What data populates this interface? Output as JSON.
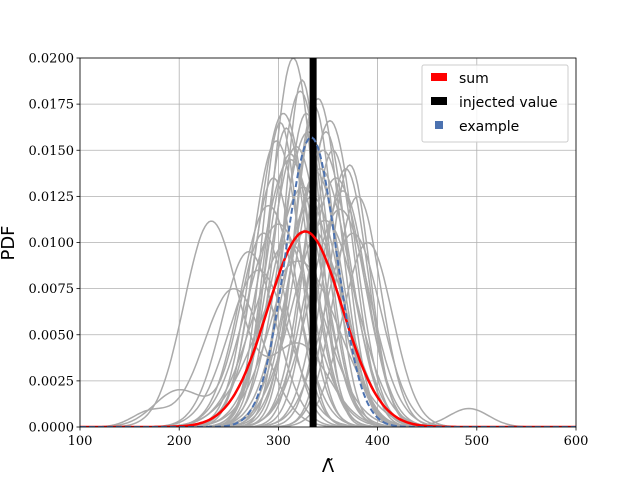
{
  "chart_data": {
    "type": "line",
    "xlabel": "Λ̃",
    "ylabel": "PDF",
    "xlim": [
      100,
      600
    ],
    "ylim": [
      0,
      0.02
    ],
    "grid": true,
    "x_ticks": [
      100,
      200,
      300,
      400,
      500,
      600
    ],
    "y_ticks": [
      0.0,
      0.0025,
      0.005,
      0.0075,
      0.01,
      0.0125,
      0.015,
      0.0175,
      0.02
    ],
    "x_tick_labels": [
      "100",
      "200",
      "300",
      "400",
      "500",
      "600"
    ],
    "y_tick_labels": [
      "0.0000",
      "0.0025",
      "0.0050",
      "0.0075",
      "0.0100",
      "0.0125",
      "0.0150",
      "0.0175",
      "0.0200"
    ],
    "legend_position": "top-right",
    "legend": [
      {
        "label": "sum",
        "color": "#ff0000",
        "style": "patch"
      },
      {
        "label": "injected value",
        "color": "#000000",
        "style": "patch"
      },
      {
        "label": "example",
        "color": "#4c72b0",
        "style": "patch"
      }
    ],
    "injected_value": 335,
    "series": [
      {
        "name": "sum",
        "color": "#ff0000",
        "dash": "solid",
        "components": [
          {
            "mu": 327,
            "sigma": 37.6,
            "peak": 0.0106
          }
        ]
      },
      {
        "name": "example",
        "color": "#4c72b0",
        "dash": "dashed",
        "components": [
          {
            "mu": 333,
            "sigma": 25.5,
            "peak": 0.0157
          }
        ]
      }
    ],
    "background_curves_color": "#aaaaaa",
    "background_curves": [
      [
        {
          "mu": 232,
          "sigma": 27,
          "peak": 0.0111
        },
        {
          "mu": 320,
          "sigma": 30,
          "peak": 0.0045
        }
      ],
      [
        {
          "mu": 315,
          "sigma": 22,
          "peak": 0.02
        }
      ],
      [
        {
          "mu": 322,
          "sigma": 24,
          "peak": 0.0182
        }
      ],
      [
        {
          "mu": 305,
          "sigma": 26,
          "peak": 0.017
        }
      ],
      [
        {
          "mu": 340,
          "sigma": 23,
          "peak": 0.0178
        }
      ],
      [
        {
          "mu": 352,
          "sigma": 25,
          "peak": 0.0166
        }
      ],
      [
        {
          "mu": 368,
          "sigma": 22,
          "peak": 0.014
        }
      ],
      [
        {
          "mu": 380,
          "sigma": 23,
          "peak": 0.0125
        }
      ],
      [
        {
          "mu": 330,
          "sigma": 28,
          "peak": 0.016
        }
      ],
      [
        {
          "mu": 298,
          "sigma": 25,
          "peak": 0.0155
        }
      ],
      [
        {
          "mu": 312,
          "sigma": 30,
          "peak": 0.0145
        }
      ],
      [
        {
          "mu": 345,
          "sigma": 27,
          "peak": 0.015
        }
      ],
      [
        {
          "mu": 358,
          "sigma": 28,
          "peak": 0.0135
        }
      ],
      [
        {
          "mu": 290,
          "sigma": 28,
          "peak": 0.012
        }
      ],
      [
        {
          "mu": 325,
          "sigma": 32,
          "peak": 0.013
        }
      ],
      [
        {
          "mu": 336,
          "sigma": 20,
          "peak": 0.0174
        }
      ],
      [
        {
          "mu": 308,
          "sigma": 21,
          "peak": 0.0162
        }
      ],
      [
        {
          "mu": 285,
          "sigma": 24,
          "peak": 0.0105
        },
        {
          "mu": 200,
          "sigma": 25,
          "peak": 0.002
        }
      ],
      [
        {
          "mu": 270,
          "sigma": 27,
          "peak": 0.0095
        }
      ],
      [
        {
          "mu": 390,
          "sigma": 25,
          "peak": 0.01
        }
      ],
      [
        {
          "mu": 362,
          "sigma": 30,
          "peak": 0.0118
        }
      ],
      [
        {
          "mu": 318,
          "sigma": 26,
          "peak": 0.0152
        }
      ],
      [
        {
          "mu": 348,
          "sigma": 21,
          "peak": 0.016
        }
      ],
      [
        {
          "mu": 300,
          "sigma": 32,
          "peak": 0.011
        }
      ],
      [
        {
          "mu": 332,
          "sigma": 35,
          "peak": 0.0108
        },
        {
          "mu": 492,
          "sigma": 20,
          "peak": 0.001
        }
      ],
      [
        {
          "mu": 255,
          "sigma": 30,
          "peak": 0.0075
        },
        {
          "mu": 170,
          "sigma": 18,
          "peak": 0.0008
        }
      ],
      [
        {
          "mu": 342,
          "sigma": 30,
          "peak": 0.014
        }
      ],
      [
        {
          "mu": 310,
          "sigma": 35,
          "peak": 0.01
        }
      ],
      [
        {
          "mu": 375,
          "sigma": 28,
          "peak": 0.0105
        }
      ],
      [
        {
          "mu": 328,
          "sigma": 22,
          "peak": 0.017
        }
      ],
      [
        {
          "mu": 295,
          "sigma": 22,
          "peak": 0.0135
        }
      ],
      [
        {
          "mu": 355,
          "sigma": 22,
          "peak": 0.015
        }
      ],
      [
        {
          "mu": 320,
          "sigma": 40,
          "peak": 0.009
        }
      ],
      [
        {
          "mu": 338,
          "sigma": 26,
          "peak": 0.0138
        }
      ],
      [
        {
          "mu": 365,
          "sigma": 24,
          "peak": 0.0128
        }
      ],
      [
        {
          "mu": 280,
          "sigma": 30,
          "peak": 0.0085
        }
      ],
      [
        {
          "mu": 302,
          "sigma": 19,
          "peak": 0.0165
        }
      ],
      [
        {
          "mu": 347,
          "sigma": 32,
          "peak": 0.0112
        }
      ],
      [
        {
          "mu": 324,
          "sigma": 18,
          "peak": 0.0188
        }
      ],
      [
        {
          "mu": 372,
          "sigma": 20,
          "peak": 0.0142
        }
      ],
      [
        {
          "mu": 312,
          "sigma": 24,
          "peak": 0.0148
        }
      ],
      [
        {
          "mu": 334,
          "sigma": 29,
          "peak": 0.0125
        }
      ]
    ]
  }
}
